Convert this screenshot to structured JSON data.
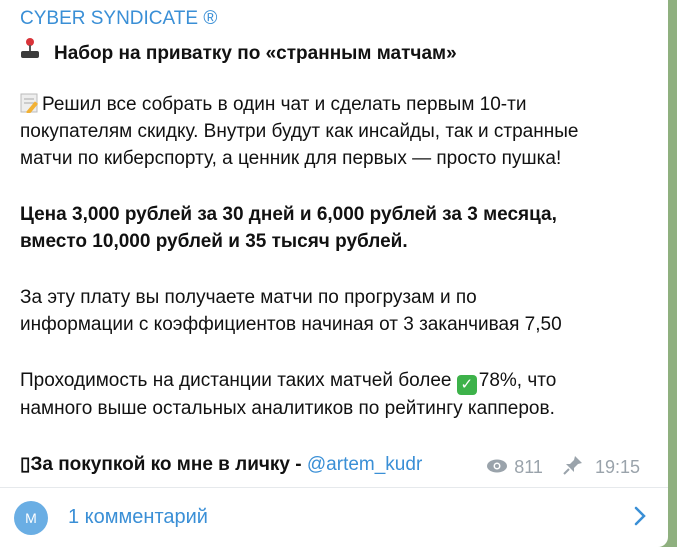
{
  "channel": {
    "name": "CYBER SYNDICATE ®"
  },
  "post": {
    "headline": "Набор на приватку по «странным матчам»",
    "p1": [
      "Решил все собрать в один чат и сделать первым 10-ти",
      "покупателям скидку. Внутри будут как инсайды, так и странные",
      "матчи по киберспорту, а ценник для первых — просто пушка!"
    ],
    "p2": [
      "Цена 3,000 рублей за 30 дней и 6,000 рублей за 3 месяца,",
      "вместо 10,000 рублей и 35 тысяч рублей."
    ],
    "p3": [
      "За эту плату вы получаете матчи по прогрузам и по",
      "информации с коэффициентов начиная от 3 заканчивая 7,50"
    ],
    "p4a": "Проходимость на дистанции таких матчей более ",
    "p4b": "78%, что",
    "p4c": "намного выше остальных аналитиков по рейтингу капперов.",
    "p5": "▯За покупкой ко мне в личку - ",
    "contact": "@artem_kudr"
  },
  "meta": {
    "views": "811",
    "time": "19:15"
  },
  "comments": {
    "avatar_letter": "M",
    "label": "1 комментарий"
  }
}
